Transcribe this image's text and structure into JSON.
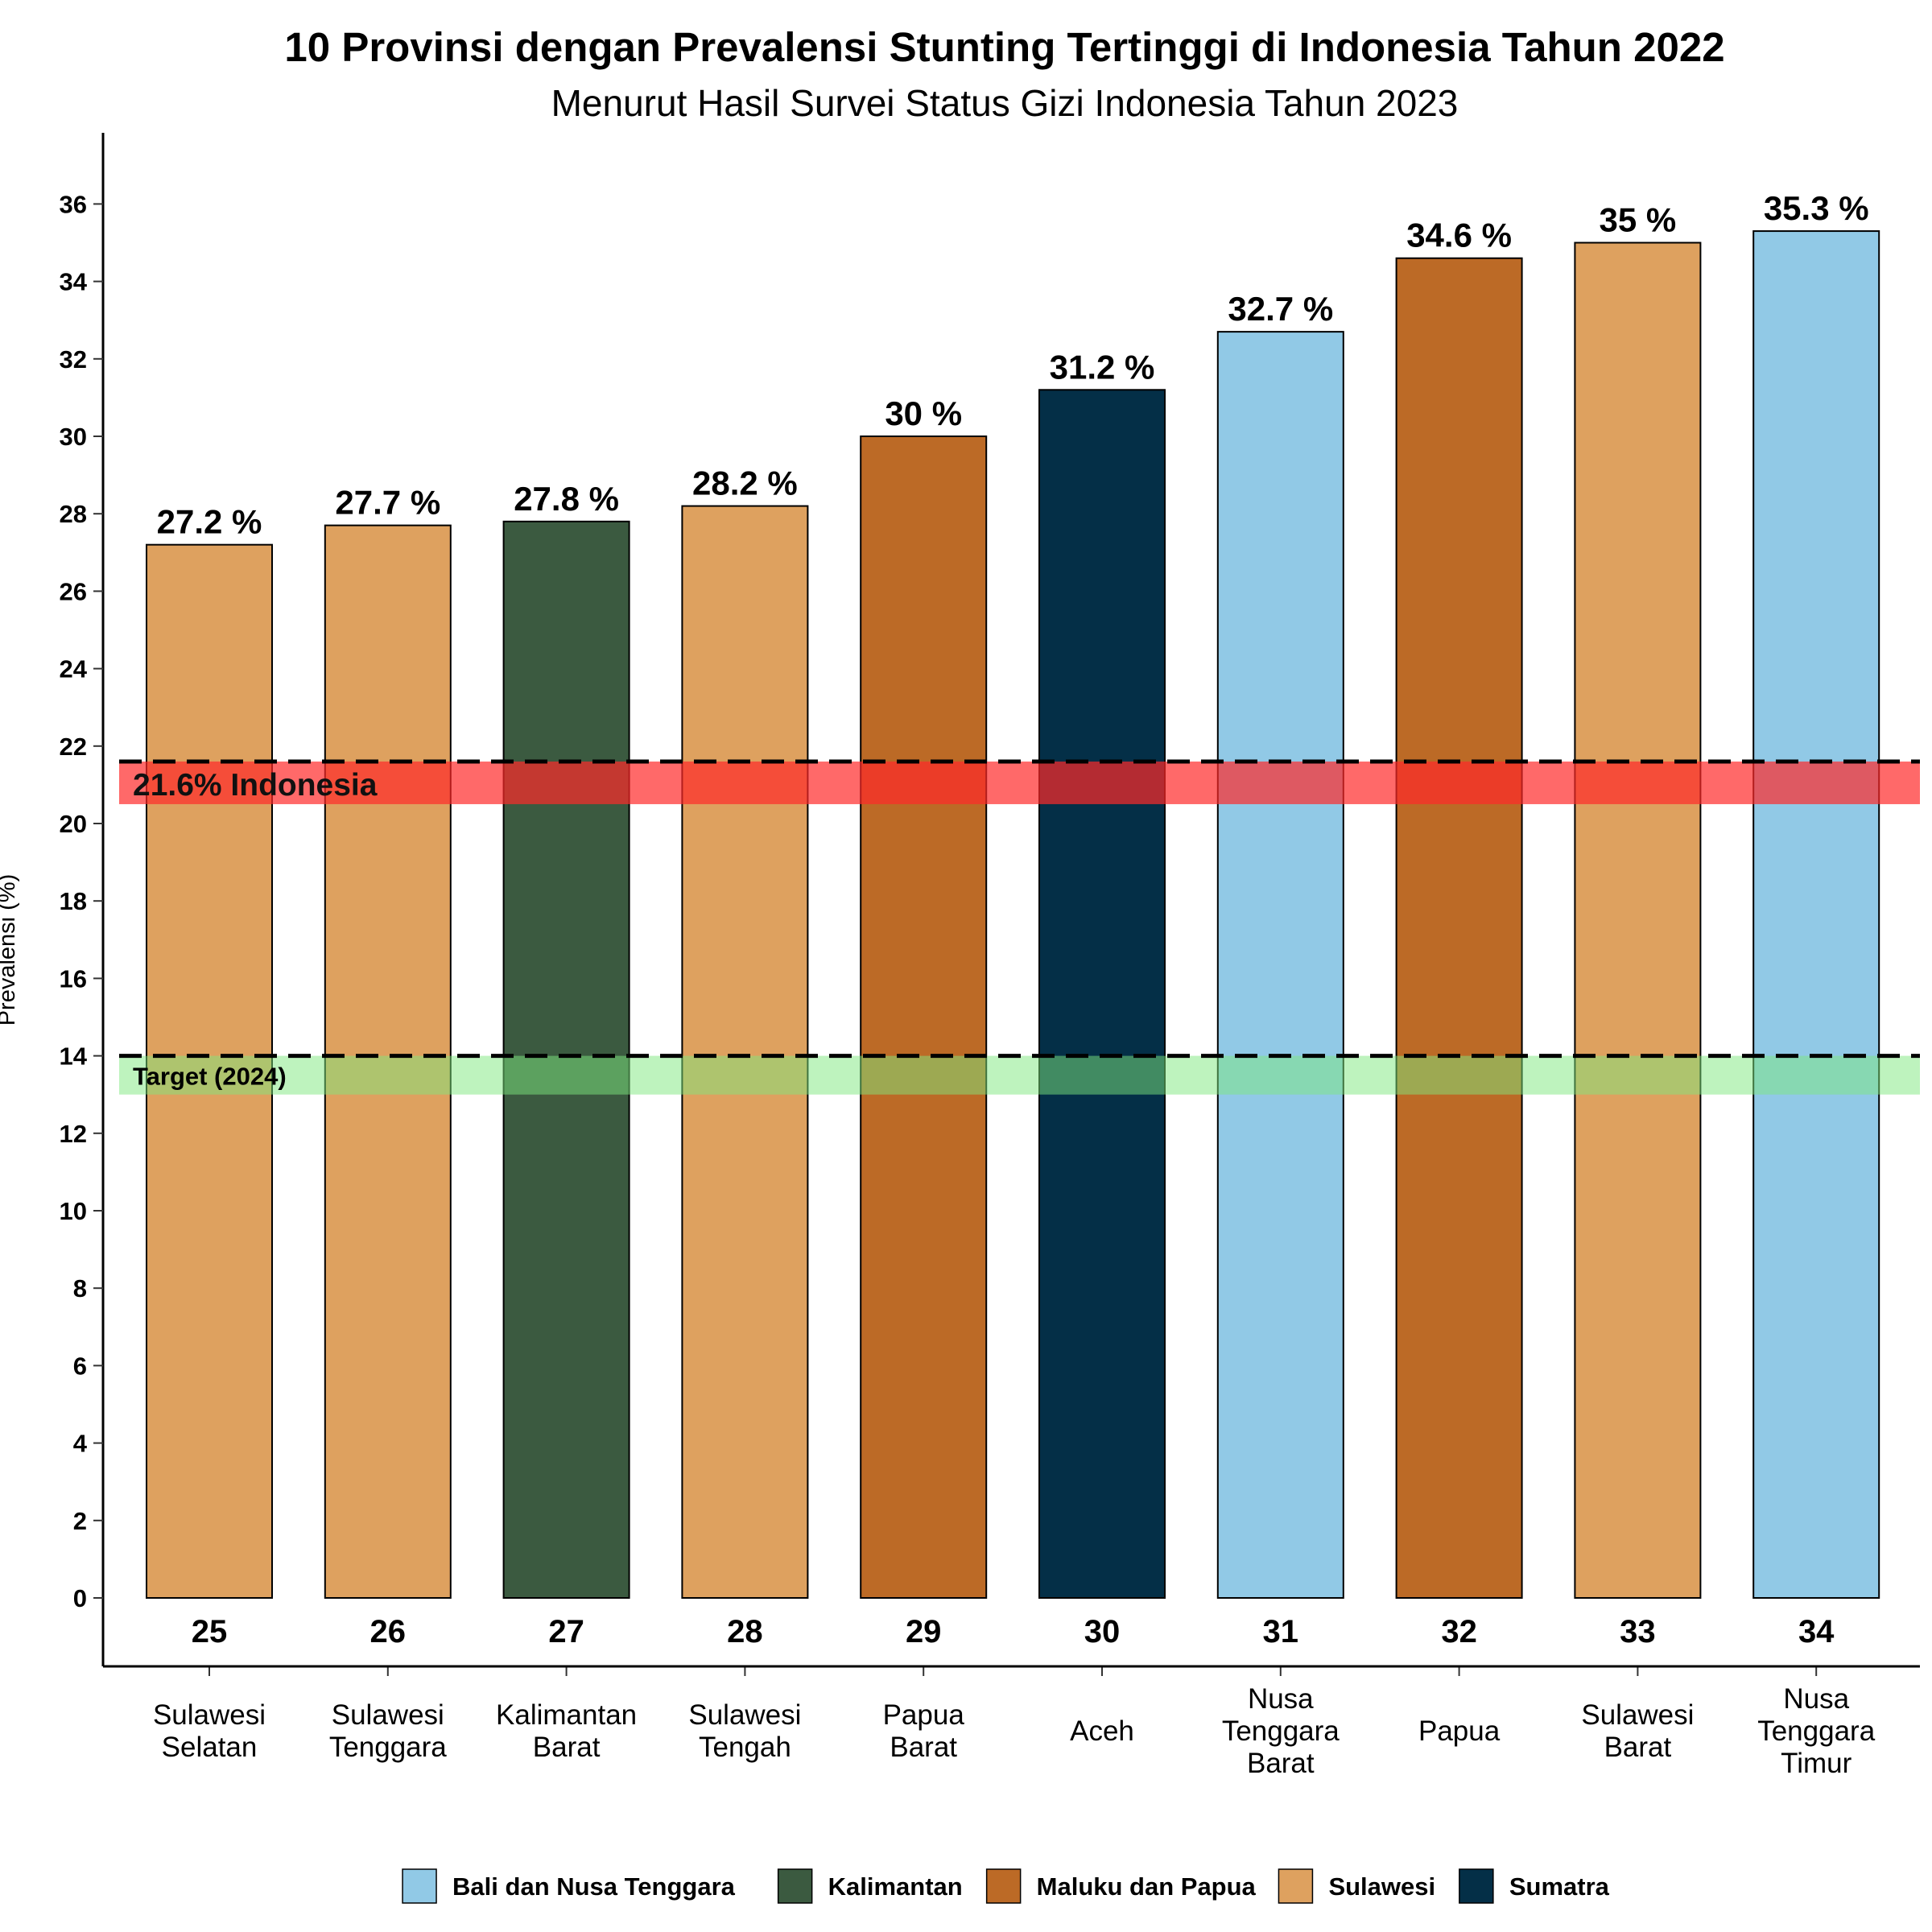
{
  "chart_data": {
    "type": "bar",
    "title": "10 Provinsi dengan Prevalensi Stunting Tertinggi di Indonesia Tahun 2022",
    "subtitle": "Menurut Hasil Survei Status Gizi Indonesia Tahun 2023",
    "ylabel": "Prevalensi (%)",
    "xlabel": "",
    "ylim": [
      -2,
      37.8
    ],
    "yticks": [
      0,
      2,
      4,
      6,
      8,
      10,
      12,
      14,
      16,
      18,
      20,
      22,
      24,
      26,
      28,
      30,
      32,
      34,
      36
    ],
    "bars": [
      {
        "rank": "25",
        "province": [
          "Sulawesi",
          "Selatan"
        ],
        "value": 27.2,
        "label": "27.2 %",
        "region": "Sulawesi"
      },
      {
        "rank": "26",
        "province": [
          "Sulawesi",
          "Tenggara"
        ],
        "value": 27.7,
        "label": "27.7 %",
        "region": "Sulawesi"
      },
      {
        "rank": "27",
        "province": [
          "Kalimantan",
          "Barat"
        ],
        "value": 27.8,
        "label": "27.8 %",
        "region": "Kalimantan"
      },
      {
        "rank": "28",
        "province": [
          "Sulawesi",
          "Tengah"
        ],
        "value": 28.2,
        "label": "28.2 %",
        "region": "Sulawesi"
      },
      {
        "rank": "29",
        "province": [
          "Papua",
          "Barat"
        ],
        "value": 30,
        "label": "30 %",
        "region": "Maluku dan Papua"
      },
      {
        "rank": "30",
        "province": [
          "Aceh"
        ],
        "value": 31.2,
        "label": "31.2 %",
        "region": "Sumatra"
      },
      {
        "rank": "31",
        "province": [
          "Nusa",
          "Tenggara",
          "Barat"
        ],
        "value": 32.7,
        "label": "32.7 %",
        "region": "Bali dan Nusa Tenggara"
      },
      {
        "rank": "32",
        "province": [
          "Papua"
        ],
        "value": 34.6,
        "label": "34.6 %",
        "region": "Maluku dan Papua"
      },
      {
        "rank": "33",
        "province": [
          "Sulawesi",
          "Barat"
        ],
        "value": 35,
        "label": "35 %",
        "region": "Sulawesi"
      },
      {
        "rank": "34",
        "province": [
          "Nusa",
          "Tenggara",
          "Timur"
        ],
        "value": 35.3,
        "label": "35.3 %",
        "region": "Bali dan Nusa Tenggara"
      }
    ],
    "reference_lines": [
      {
        "value": 21.6,
        "label": "21.6% Indonesia",
        "band_color": "#ff2a2a",
        "band_range": [
          20.5,
          21.6
        ]
      },
      {
        "value": 14,
        "label": "Target (2024)",
        "band_color": "#7ee87e",
        "band_range": [
          13,
          14
        ]
      }
    ],
    "legend": {
      "position": "bottom",
      "items": [
        {
          "name": "Bali dan Nusa Tenggara",
          "color": "#91c9e6"
        },
        {
          "name": "Kalimantan",
          "color": "#3b5a40"
        },
        {
          "name": "Maluku dan Papua",
          "color": "#bc6a26"
        },
        {
          "name": "Sulawesi",
          "color": "#dea15f"
        },
        {
          "name": "Sumatra",
          "color": "#042f47"
        }
      ]
    },
    "grid": false
  }
}
